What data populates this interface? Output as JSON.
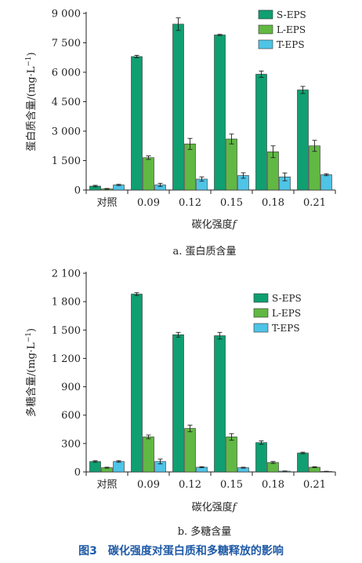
{
  "figure_caption": "图3　碳化强度对蛋白质和多糖释放的影响",
  "colors": {
    "S-EPS": "#0f9f70",
    "L-EPS": "#61b843",
    "T-EPS": "#4ec4e6"
  },
  "chart_data": [
    {
      "type": "bar",
      "subtitle": "a. 蛋白质含量",
      "xlabel": "碳化强度",
      "xlabel_var": "f",
      "ylabel": "蛋白质含量/(mg·L",
      "ylabel_sup": "−1",
      "ylabel_end": ")",
      "categories": [
        "对照",
        "0.09",
        "0.12",
        "0.15",
        "0.18",
        "0.21"
      ],
      "ylim": [
        0,
        9000
      ],
      "yticks": [
        0,
        1500,
        3000,
        4500,
        6000,
        7500,
        9000
      ],
      "ytick_labels": [
        "0",
        "1 500",
        "3 000",
        "4 500",
        "6 000",
        "7 500",
        "9 000"
      ],
      "legend_position": "top-right",
      "series": [
        {
          "name": "S-EPS",
          "values": [
            200,
            6800,
            8450,
            7900,
            5900,
            5100
          ],
          "errors": [
            40,
            60,
            320,
            30,
            160,
            180
          ]
        },
        {
          "name": "L-EPS",
          "values": [
            60,
            1650,
            2350,
            2600,
            1950,
            2250
          ],
          "errors": [
            20,
            90,
            280,
            250,
            300,
            280
          ]
        },
        {
          "name": "T-EPS",
          "values": [
            260,
            260,
            560,
            740,
            670,
            780
          ],
          "errors": [
            30,
            80,
            110,
            140,
            200,
            50
          ]
        }
      ]
    },
    {
      "type": "bar",
      "subtitle": "b. 多糖含量",
      "xlabel": "碳化强度",
      "xlabel_var": "f",
      "ylabel": "多糖含量/(mg·L",
      "ylabel_sup": "−1",
      "ylabel_end": ")",
      "categories": [
        "对照",
        "0.09",
        "0.12",
        "0.15",
        "0.18",
        "0.21"
      ],
      "ylim": [
        0,
        2100
      ],
      "yticks": [
        0,
        300,
        600,
        900,
        1200,
        1500,
        1800,
        2100
      ],
      "ytick_labels": [
        "0",
        "300",
        "600",
        "900",
        "1 200",
        "1 500",
        "1 800",
        "2 100"
      ],
      "legend_position": "top-right",
      "series": [
        {
          "name": "S-EPS",
          "values": [
            110,
            1880,
            1450,
            1440,
            310,
            200
          ],
          "errors": [
            8,
            15,
            25,
            35,
            18,
            8
          ]
        },
        {
          "name": "L-EPS",
          "values": [
            45,
            370,
            460,
            370,
            100,
            50
          ],
          "errors": [
            5,
            20,
            35,
            35,
            10,
            5
          ]
        },
        {
          "name": "T-EPS",
          "values": [
            110,
            110,
            50,
            45,
            8,
            5
          ],
          "errors": [
            8,
            25,
            5,
            5,
            2,
            2
          ]
        }
      ]
    }
  ]
}
